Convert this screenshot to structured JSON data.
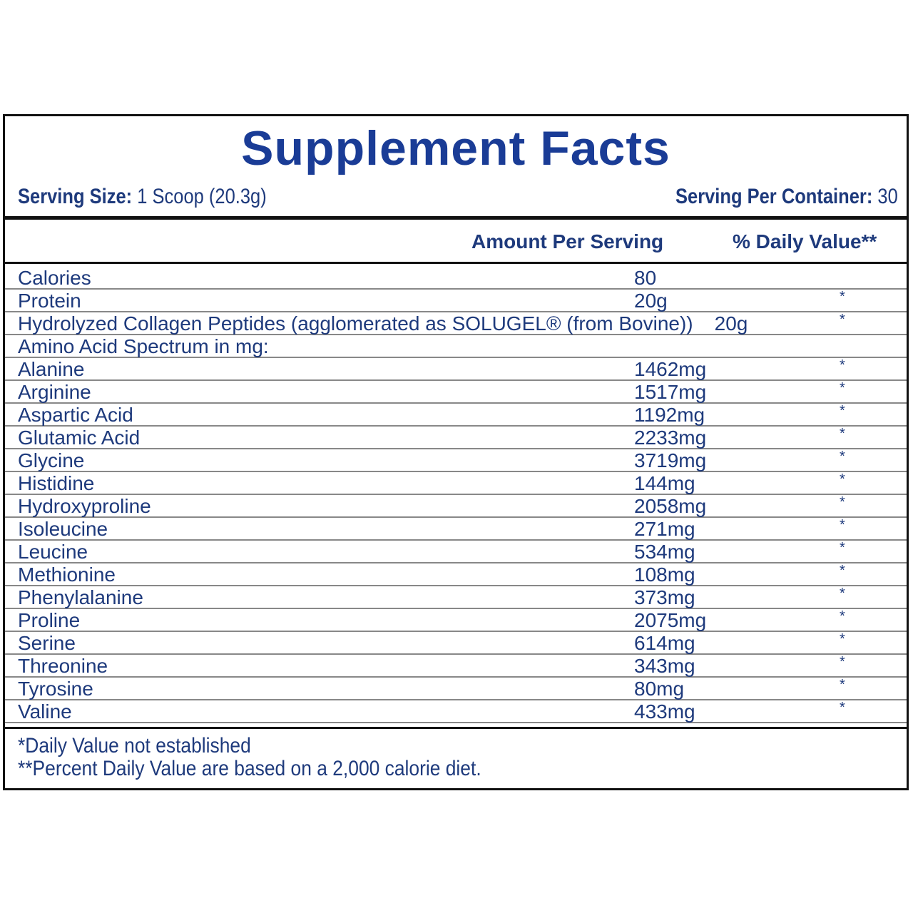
{
  "header": {
    "title": "Supplement Facts",
    "serving_size_label": "Serving Size:",
    "serving_size": "1 Scoop (20.3g)",
    "servings_label": "Serving Per Container:",
    "servings": "30"
  },
  "table": {
    "columns": [
      "Amount Per Serving",
      "% Daily Value**"
    ],
    "rows": [
      {
        "name": "Calories",
        "amount": "80"
      },
      {
        "name": "Protein",
        "amount": "20g",
        "dv": "*"
      },
      {
        "name": "Hydrolyzed Collagen Peptides (agglomerated as SOLUGEL® (from Bovine))",
        "amount": "20g",
        "dv": "*"
      },
      {
        "name": "Amino Acid Spectrum in mg:"
      },
      {
        "name": "Alanine",
        "amount": "1462mg",
        "dv": "*"
      },
      {
        "name": "Arginine",
        "amount": "1517mg",
        "dv": "*"
      },
      {
        "name": "Aspartic Acid",
        "amount": "1192mg",
        "dv": "*"
      },
      {
        "name": "Glutamic Acid",
        "amount": "2233mg",
        "dv": "*"
      },
      {
        "name": "Glycine",
        "amount": "3719mg",
        "dv": "*"
      },
      {
        "name": "Histidine",
        "amount": "144mg",
        "dv": "*"
      },
      {
        "name": "Hydroxyproline",
        "amount": "2058mg",
        "dv": "*"
      },
      {
        "name": "Isoleucine",
        "amount": "271mg",
        "dv": "*"
      },
      {
        "name": "Leucine",
        "amount": "534mg",
        "dv": "*"
      },
      {
        "name": "Methionine",
        "amount": "108mg",
        "dv": "*"
      },
      {
        "name": "Phenylalanine",
        "amount": "373mg",
        "dv": "*"
      },
      {
        "name": "Proline",
        "amount": "2075mg",
        "dv": "*"
      },
      {
        "name": "Serine",
        "amount": "614mg",
        "dv": "*"
      },
      {
        "name": "Threonine",
        "amount": "343mg",
        "dv": "*"
      },
      {
        "name": "Tyrosine",
        "amount": "80mg",
        "dv": "*"
      },
      {
        "name": "Valine",
        "amount": "433mg",
        "dv": "*"
      }
    ]
  },
  "footnotes": [
    "*Daily Value not established",
    "**Percent Daily Value are based on a 2,000 calorie diet."
  ]
}
